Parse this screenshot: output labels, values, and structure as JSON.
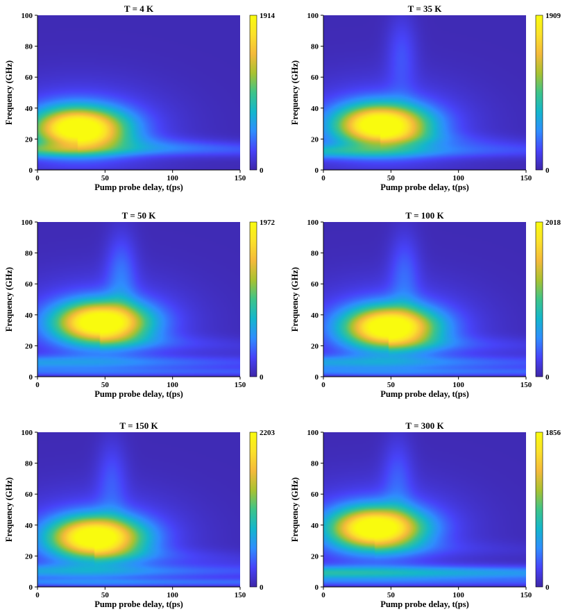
{
  "colormap": [
    "#3e26a8",
    "#4743f8",
    "#2f8dfe",
    "#14b6cd",
    "#3dc48a",
    "#a8c231",
    "#f4ba3b",
    "#fbe12b",
    "#f9fb0e"
  ],
  "background_color": "#3f2db5",
  "chart_data": [
    {
      "type": "heatmap",
      "title": "T = 4 K",
      "xlabel": "Pump probe delay, t(ps)",
      "ylabel": "Frequency (GHz)",
      "xlim": [
        0,
        150
      ],
      "ylim": [
        0,
        100
      ],
      "xticks": [
        "0",
        "50",
        "100",
        "150"
      ],
      "yticks": [
        "0",
        "20",
        "40",
        "60",
        "80",
        "100"
      ],
      "colorbar": {
        "min": 0,
        "max": 1914,
        "min_label": "0",
        "max_label": "1914"
      },
      "peak": {
        "t": 30,
        "f": 27,
        "value": 1914
      },
      "low_band": {
        "f": 13,
        "strength": 0.3,
        "decay_ps": 110
      },
      "deep_band": {
        "f": 3,
        "strength": 0
      },
      "tail_ridge": {
        "f_start": 20,
        "f_end": 14,
        "strength": 0.12,
        "extends_to_ps": 150
      },
      "upper_lobe": {
        "t": 55,
        "f": 70,
        "strength": 0
      }
    },
    {
      "type": "heatmap",
      "title": "T = 35 K",
      "xlabel": "Pump probe delay, t(ps)",
      "ylabel": "Frequency (GHz)",
      "xlim": [
        0,
        150
      ],
      "ylim": [
        0,
        100
      ],
      "xticks": [
        "0",
        "50",
        "100",
        "150"
      ],
      "yticks": [
        "0",
        "20",
        "40",
        "60",
        "80",
        "100"
      ],
      "colorbar": {
        "min": 0,
        "max": 1909,
        "min_label": "0",
        "max_label": "1909"
      },
      "peak": {
        "t": 42,
        "f": 29,
        "value": 1909
      },
      "low_band": {
        "f": 12,
        "strength": 0.28,
        "decay_ps": 120
      },
      "deep_band": {
        "f": 3,
        "strength": 0
      },
      "tail_ridge": {
        "f_start": 22,
        "f_end": 16,
        "strength": 0.1,
        "extends_to_ps": 150
      },
      "upper_lobe": {
        "t": 58,
        "f": 75,
        "strength": 0.12
      }
    },
    {
      "type": "heatmap",
      "title": "T = 50 K",
      "xlabel": "Pump probe delay, t(ps)",
      "ylabel": "Frequency (GHz)",
      "xlim": [
        0,
        150
      ],
      "ylim": [
        0,
        100
      ],
      "xticks": [
        "0",
        "50",
        "100",
        "150"
      ],
      "yticks": [
        "0",
        "20",
        "40",
        "60",
        "80",
        "100"
      ],
      "colorbar": {
        "min": 0,
        "max": 1972,
        "min_label": "0",
        "max_label": "1972"
      },
      "peak": {
        "t": 46,
        "f": 35,
        "value": 1972
      },
      "low_band": {
        "f": 9,
        "strength": 0.24,
        "decay_ps": 200
      },
      "deep_band": {
        "f": 3,
        "strength": 0.12
      },
      "tail_ridge": {
        "f_start": 24,
        "f_end": 20,
        "strength": 0.1,
        "extends_to_ps": 150
      },
      "upper_lobe": {
        "t": 62,
        "f": 68,
        "strength": 0.16
      }
    },
    {
      "type": "heatmap",
      "title": "T = 100 K",
      "xlabel": "Pump probe delay, t(ps)",
      "ylabel": "Frequency (GHz)",
      "xlim": [
        0,
        150
      ],
      "ylim": [
        0,
        100
      ],
      "xticks": [
        "0",
        "50",
        "100",
        "150"
      ],
      "yticks": [
        "0",
        "20",
        "40",
        "60",
        "80",
        "100"
      ],
      "colorbar": {
        "min": 0,
        "max": 2018,
        "min_label": "0",
        "max_label": "2018"
      },
      "peak": {
        "t": 48,
        "f": 32,
        "value": 2018
      },
      "low_band": {
        "f": 9,
        "strength": 0.25,
        "decay_ps": 220
      },
      "deep_band": {
        "f": 3,
        "strength": 0.14
      },
      "tail_ridge": {
        "f_start": 22,
        "f_end": 20,
        "strength": 0.12,
        "extends_to_ps": 150
      },
      "upper_lobe": {
        "t": 60,
        "f": 68,
        "strength": 0.14
      }
    },
    {
      "type": "heatmap",
      "title": "T = 150 K",
      "xlabel": "Pump probe delay, t(ps)",
      "ylabel": "Frequency (GHz)",
      "xlim": [
        0,
        150
      ],
      "ylim": [
        0,
        100
      ],
      "xticks": [
        "0",
        "50",
        "100",
        "150"
      ],
      "yticks": [
        "0",
        "20",
        "40",
        "60",
        "80",
        "100"
      ],
      "colorbar": {
        "min": 0,
        "max": 2203,
        "min_label": "0",
        "max_label": "2203"
      },
      "peak": {
        "t": 42,
        "f": 32,
        "value": 2203
      },
      "low_band": {
        "f": 10,
        "strength": 0.24,
        "decay_ps": 220
      },
      "deep_band": {
        "f": 3,
        "strength": 0.16
      },
      "tail_ridge": {
        "f_start": 22,
        "f_end": 18,
        "strength": 0.1,
        "extends_to_ps": 150
      },
      "upper_lobe": {
        "t": 55,
        "f": 70,
        "strength": 0.12
      }
    },
    {
      "type": "heatmap",
      "title": "T = 300 K",
      "xlabel": "Pump probe delay, t(ps)",
      "ylabel": "Frequency (GHz)",
      "xlim": [
        0,
        150
      ],
      "ylim": [
        0,
        100
      ],
      "xticks": [
        "0",
        "50",
        "100",
        "150"
      ],
      "yticks": [
        "0",
        "20",
        "40",
        "60",
        "80",
        "100"
      ],
      "colorbar": {
        "min": 0,
        "max": 1856,
        "min_label": "0",
        "max_label": "1856"
      },
      "peak": {
        "t": 38,
        "f": 38,
        "value": 1856
      },
      "low_band": {
        "f": 9,
        "strength": 0.38,
        "decay_ps": 400
      },
      "deep_band": {
        "f": 3,
        "strength": 0.1
      },
      "tail_ridge": {
        "f_start": 26,
        "f_end": 24,
        "strength": 0.06,
        "extends_to_ps": 150
      },
      "upper_lobe": {
        "t": 55,
        "f": 72,
        "strength": 0.12
      }
    }
  ]
}
